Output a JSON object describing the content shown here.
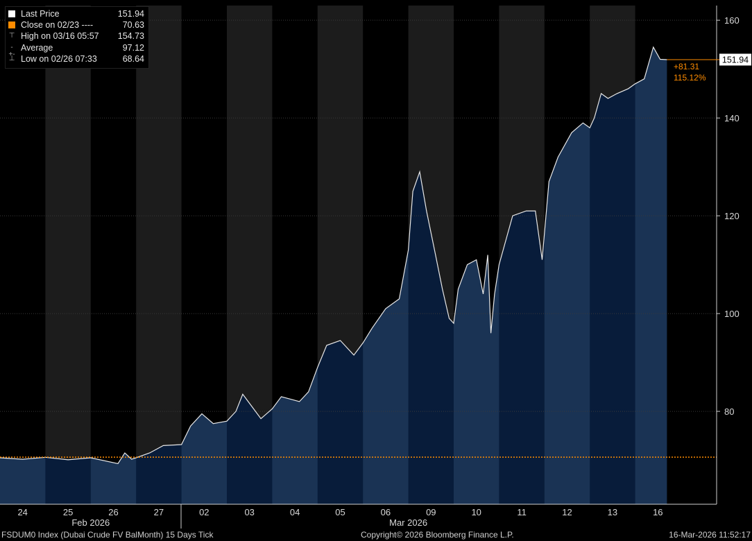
{
  "chart_data": {
    "type": "line",
    "title": "",
    "ylim": [
      61,
      163
    ],
    "yticks": [
      80,
      100,
      120,
      140,
      160
    ],
    "grid": true,
    "last_price": "151.94",
    "change_abs": "+81.31",
    "change_pct": "115.12%",
    "reference_close": 70.63,
    "days": [
      {
        "label": "24",
        "shade": "light"
      },
      {
        "label": "25",
        "shade": "dark"
      },
      {
        "label": "26",
        "shade": "light"
      },
      {
        "label": "27",
        "shade": "dark"
      },
      {
        "label": "02",
        "shade": "light"
      },
      {
        "label": "03",
        "shade": "dark"
      },
      {
        "label": "04",
        "shade": "light"
      },
      {
        "label": "05",
        "shade": "dark"
      },
      {
        "label": "06",
        "shade": "light"
      },
      {
        "label": "09",
        "shade": "dark"
      },
      {
        "label": "10",
        "shade": "light"
      },
      {
        "label": "11",
        "shade": "dark"
      },
      {
        "label": "12",
        "shade": "light"
      },
      {
        "label": "13",
        "shade": "dark"
      },
      {
        "label": "16",
        "shade": "light"
      }
    ],
    "months": [
      {
        "label": "Feb 2026",
        "day_index": 1.5
      },
      {
        "label": "Mar 2026",
        "day_index": 8.5
      }
    ],
    "series": [
      {
        "x": [
          0,
          0.5,
          1,
          1.5,
          2,
          2.6,
          2.75,
          2.9,
          3,
          3.3,
          3.6,
          4,
          4.2,
          4.45,
          4.7,
          5,
          5.2,
          5.35,
          5.55,
          5.75,
          6,
          6.2,
          6.4,
          6.6,
          6.8,
          7,
          7.2,
          7.5,
          7.8,
          8,
          8.2,
          8.5,
          8.8,
          9,
          9.1,
          9.25,
          9.4,
          9.6,
          9.75,
          9.9,
          10,
          10.1,
          10.3,
          10.5,
          10.65,
          10.75,
          10.82,
          10.9,
          11,
          11.3,
          11.6,
          11.8,
          11.95,
          12.1,
          12.3,
          12.6,
          12.85,
          13,
          13.1,
          13.25,
          13.4,
          13.6,
          13.85,
          14,
          14.2,
          14.4,
          14.55,
          14.7
        ],
        "y": [
          70.5,
          70.2,
          70.6,
          70.1,
          70.5,
          69.3,
          71.5,
          70.2,
          70.5,
          71.5,
          73.0,
          73.2,
          77.0,
          79.5,
          77.5,
          78.0,
          80.0,
          83.5,
          81.0,
          78.5,
          80.5,
          83.0,
          82.5,
          82.0,
          84.0,
          89.0,
          93.5,
          94.5,
          91.5,
          94.0,
          97.0,
          101.0,
          103.0,
          113.0,
          125.0,
          129.0,
          121.0,
          112.0,
          105.0,
          99.0,
          98.0,
          105.0,
          110.0,
          111.0,
          104.0,
          112.0,
          96.0,
          104.0,
          110.0,
          120.0,
          121.0,
          121.0,
          111.0,
          127.0,
          132.0,
          137.0,
          139.0,
          138.0,
          140.0,
          145.0,
          144.0,
          145.0,
          146.0,
          147.0,
          148.0,
          154.5,
          152.0,
          151.94
        ]
      }
    ]
  },
  "legend": {
    "items": [
      {
        "label": "Last Price",
        "value": "151.94",
        "color": "#ffffff",
        "marker": "square"
      },
      {
        "label": "Close on 02/23 ----",
        "value": "70.63",
        "color": "#ff8c00",
        "marker": "square"
      },
      {
        "label": "High on 03/16 05:57",
        "value": "154.73",
        "color": "#aaaaaa",
        "marker": "T"
      },
      {
        "label": "Average",
        "value": "97.12",
        "color": "#aaaaaa",
        "marker": "-+-"
      },
      {
        "label": "Low on 02/26 07:33",
        "value": "68.64",
        "color": "#aaaaaa",
        "marker": "⊥"
      }
    ]
  },
  "footer": {
    "left": "FSDUM0 Index (Dubai Crude FV BalMonth) 15 Days Tick",
    "center": "Copyright© 2026 Bloomberg Finance L.P.",
    "right": "16-Mar-2026 11:52:17"
  },
  "colors": {
    "background": "#000000",
    "band_dark": "#1c1c1c",
    "fill_light": "#1a3354",
    "fill_dark": "#081c3a",
    "line": "#e8e8e8",
    "accent": "#ff8c00"
  }
}
